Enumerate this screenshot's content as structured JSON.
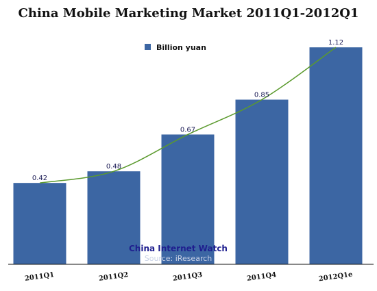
{
  "chart_data": {
    "type": "bar",
    "title": "China Mobile Marketing Market 2011Q1-2012Q1",
    "categories": [
      "2011Q1",
      "2011Q2",
      "2011Q3",
      "2011Q4",
      "2012Q1e"
    ],
    "series": [
      {
        "name": "Billion yuan",
        "values": [
          0.42,
          0.48,
          0.67,
          0.85,
          1.12
        ],
        "color": "#3c66a3"
      }
    ],
    "data_labels": [
      "0.42",
      "0.48",
      "0.67",
      "0.85",
      "1.12"
    ],
    "trendline": {
      "type": "polynomial",
      "color": "#5b9a2e"
    },
    "ylim": [
      0,
      1.17
    ],
    "grid": false,
    "legend_position": "top-center",
    "xlabel": "",
    "ylabel": ""
  },
  "watermark": {
    "main": "China Internet Watch",
    "sub": "Source: iResearch"
  }
}
